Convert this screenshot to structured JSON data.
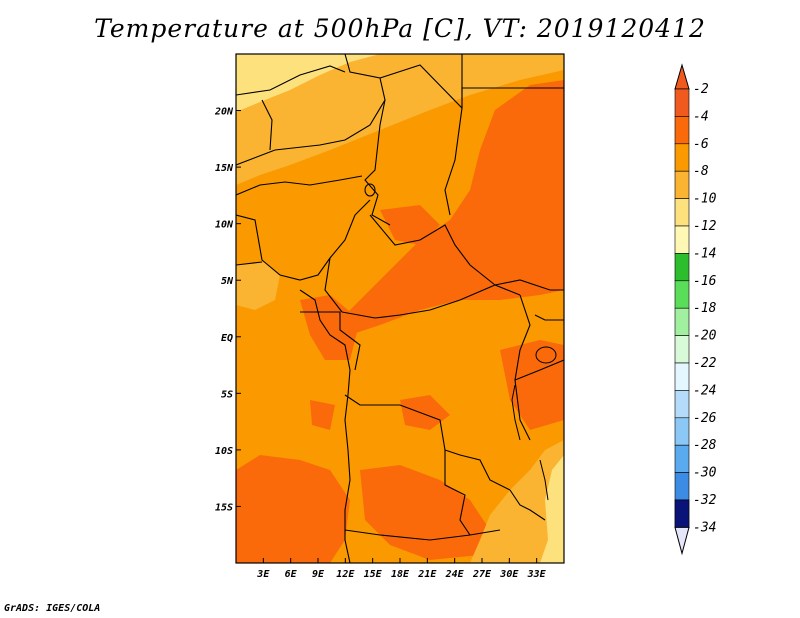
{
  "title": "Temperature at 500hPa [C], VT: 2019120412",
  "credit": "GrADS: IGES/COLA",
  "map": {
    "lon_range": [
      0,
      36
    ],
    "lat_range": [
      -20,
      25
    ],
    "x_ticks": [
      {
        "value": 3,
        "label": "3E"
      },
      {
        "value": 6,
        "label": "6E"
      },
      {
        "value": 9,
        "label": "9E"
      },
      {
        "value": 12,
        "label": "12E"
      },
      {
        "value": 15,
        "label": "15E"
      },
      {
        "value": 18,
        "label": "18E"
      },
      {
        "value": 21,
        "label": "21E"
      },
      {
        "value": 24,
        "label": "24E"
      },
      {
        "value": 27,
        "label": "27E"
      },
      {
        "value": 30,
        "label": "30E"
      },
      {
        "value": 33,
        "label": "33E"
      }
    ],
    "y_ticks": [
      {
        "value": 20,
        "label": "20N"
      },
      {
        "value": 15,
        "label": "15N"
      },
      {
        "value": 10,
        "label": "10N"
      },
      {
        "value": 5,
        "label": "5N"
      },
      {
        "value": 0,
        "label": "EQ"
      },
      {
        "value": -5,
        "label": "5S"
      },
      {
        "value": -10,
        "label": "10S"
      },
      {
        "value": -15,
        "label": "15S"
      }
    ]
  },
  "colorbar": {
    "levels": [
      {
        "label": "-2",
        "color": "#f05a1e"
      },
      {
        "label": "-4",
        "color": "#fa6a0a"
      },
      {
        "label": "-6",
        "color": "#fa9a00"
      },
      {
        "label": "-8",
        "color": "#fab432"
      },
      {
        "label": "-10",
        "color": "#fde17d"
      },
      {
        "label": "-12",
        "color": "#fff8b4"
      },
      {
        "label": "-14",
        "color": "#2dbe2d"
      },
      {
        "label": "-16",
        "color": "#5ade5a"
      },
      {
        "label": "-18",
        "color": "#a0f0a0"
      },
      {
        "label": "-20",
        "color": "#d8fad8"
      },
      {
        "label": "-22",
        "color": "#e4f6ff"
      },
      {
        "label": "-24",
        "color": "#b4dcfa"
      },
      {
        "label": "-26",
        "color": "#8cc8f5"
      },
      {
        "label": "-28",
        "color": "#5aaaf0"
      },
      {
        "label": "-30",
        "color": "#3c8ce6"
      },
      {
        "label": "-32",
        "color": "#1e6ed2"
      },
      {
        "label": "-34",
        "color": "#1450be"
      }
    ],
    "over_color": "#f05a1e",
    "under_color": "#e6e6fa",
    "dark_band_color": "#0a1478"
  }
}
